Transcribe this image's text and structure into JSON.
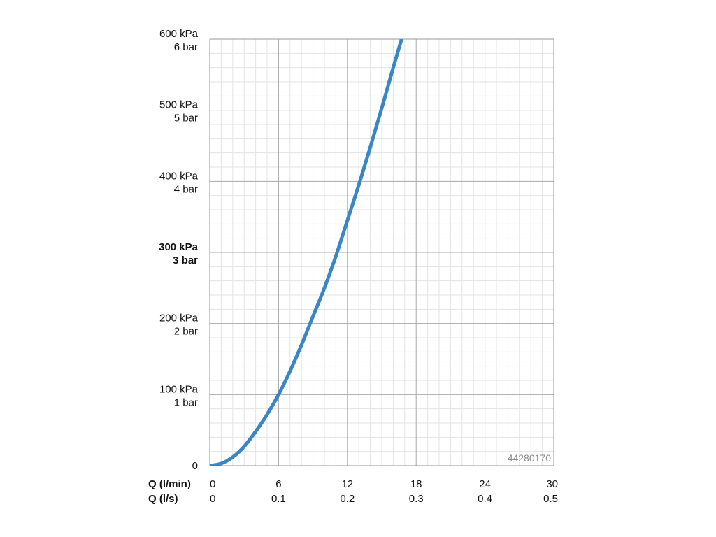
{
  "chart_data": {
    "type": "line",
    "title": "",
    "code_label": "44280170",
    "x_axes": [
      {
        "label": "Q (l/min)",
        "ticks": [
          "0",
          "6",
          "12",
          "18",
          "24",
          "30"
        ]
      },
      {
        "label": "Q (l/s)",
        "ticks": [
          "0",
          "0.1",
          "0.2",
          "0.3",
          "0.4",
          "0.5"
        ]
      }
    ],
    "xlim": [
      0,
      30
    ],
    "ylim": [
      0,
      600
    ],
    "y_ticks": [
      {
        "value": 0,
        "kpa": "0",
        "bar": "",
        "bold": false
      },
      {
        "value": 100,
        "kpa": "100 kPa",
        "bar": "1 bar",
        "bold": false
      },
      {
        "value": 200,
        "kpa": "200 kPa",
        "bar": "2 bar",
        "bold": false
      },
      {
        "value": 300,
        "kpa": "300 kPa",
        "bar": "3 bar",
        "bold": true
      },
      {
        "value": 400,
        "kpa": "400 kPa",
        "bar": "4 bar",
        "bold": false
      },
      {
        "value": 500,
        "kpa": "500 kPa",
        "bar": "5 bar",
        "bold": false
      },
      {
        "value": 600,
        "kpa": "600 kPa",
        "bar": "6 bar",
        "bold": false
      }
    ],
    "grid": true,
    "series": [
      {
        "color": "#3a86c2",
        "x": [
          0,
          1,
          2,
          3,
          4,
          5,
          6,
          7,
          8,
          9,
          10,
          11,
          12,
          13,
          14,
          15,
          16,
          17,
          17.1
        ],
        "y": [
          0,
          3,
          12,
          27,
          48,
          72,
          100,
          133,
          170,
          210,
          250,
          295,
          345,
          395,
          448,
          503,
          560,
          615,
          622
        ]
      }
    ]
  }
}
